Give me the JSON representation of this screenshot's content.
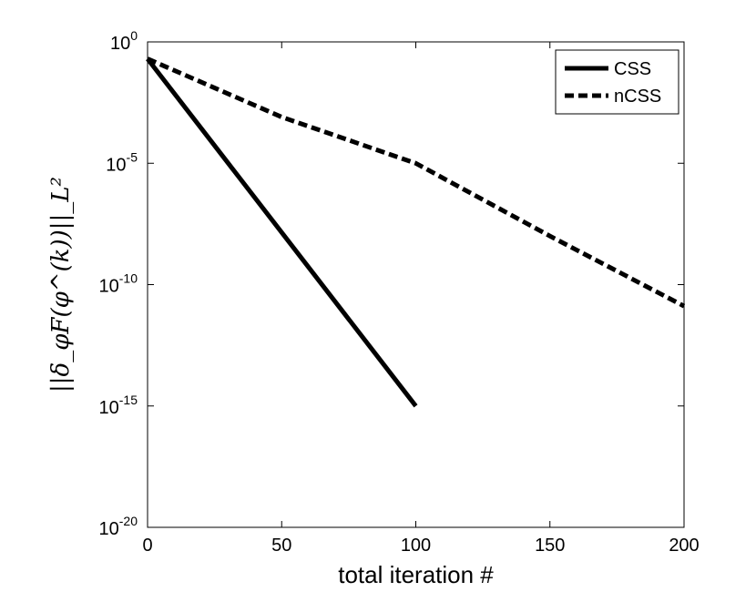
{
  "chart_data": {
    "type": "line",
    "xlabel": "total iteration #",
    "ylabel": "||δ_φF(φ^(k))||_L²",
    "xlim": [
      0,
      200
    ],
    "ylim_exponents": [
      -20,
      0
    ],
    "y_scale": "log",
    "x_ticks": [
      0,
      50,
      100,
      150,
      200
    ],
    "y_ticks": [
      {
        "base": "10",
        "exp": "0",
        "value": 1
      },
      {
        "base": "10",
        "exp": "-5",
        "value": 1e-05
      },
      {
        "base": "10",
        "exp": "-10",
        "value": 1e-10
      },
      {
        "base": "10",
        "exp": "-15",
        "value": 1e-15
      },
      {
        "base": "10",
        "exp": "-20",
        "value": 1e-20
      }
    ],
    "grid": false,
    "legend_position": "top-right",
    "series": [
      {
        "name": "CSS",
        "style": "solid",
        "x": [
          0,
          100
        ],
        "y": [
          0.2,
          1e-15
        ]
      },
      {
        "name": "nCSS",
        "style": "dashed",
        "x": [
          0,
          50,
          100,
          150,
          200
        ],
        "y": [
          0.2,
          0.0008,
          1e-05,
          1e-08,
          1.3e-11
        ]
      }
    ]
  }
}
